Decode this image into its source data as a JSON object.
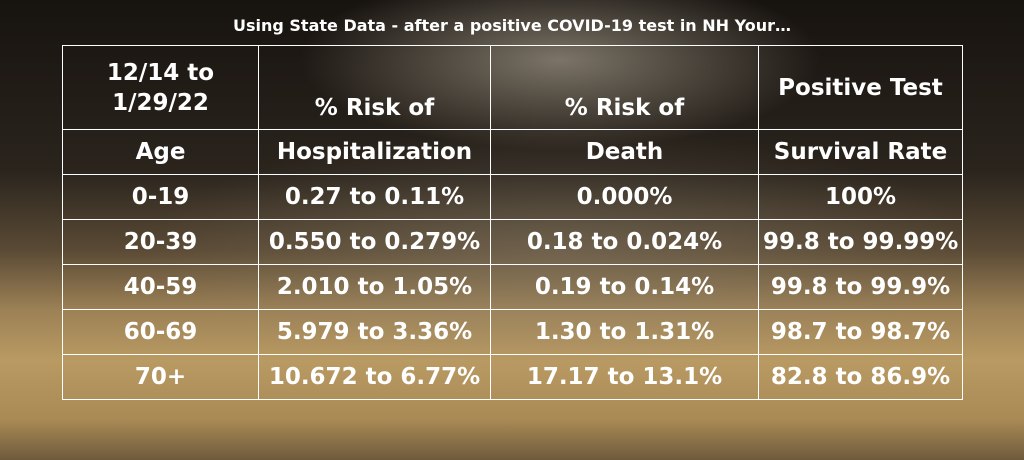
{
  "title": "Using State Data - after a positive COVID-19 test in NH Your…",
  "table": {
    "header": [
      [
        "12/14 to 1/29/22",
        "% Risk of",
        "% Risk of",
        "Positive Test"
      ],
      [
        "Age",
        "Hospitalization",
        "Death",
        "Survival Rate"
      ]
    ],
    "rows": [
      [
        "0-19",
        "0.27 to 0.11%",
        "0.000%",
        "100%"
      ],
      [
        "20-39",
        "0.550 to 0.279%",
        "0.18 to 0.024%",
        "99.8 to 99.99%"
      ],
      [
        "40-59",
        "2.010 to 1.05%",
        "0.19 to 0.14%",
        "99.8 to 99.9%"
      ],
      [
        "60-69",
        "5.979 to 3.36%",
        "1.30 to 1.31%",
        "98.7 to 98.7%"
      ],
      [
        "70+",
        "10.672 to 6.77%",
        "17.17 to 13.1%",
        "82.8 to 86.9%"
      ]
    ]
  }
}
